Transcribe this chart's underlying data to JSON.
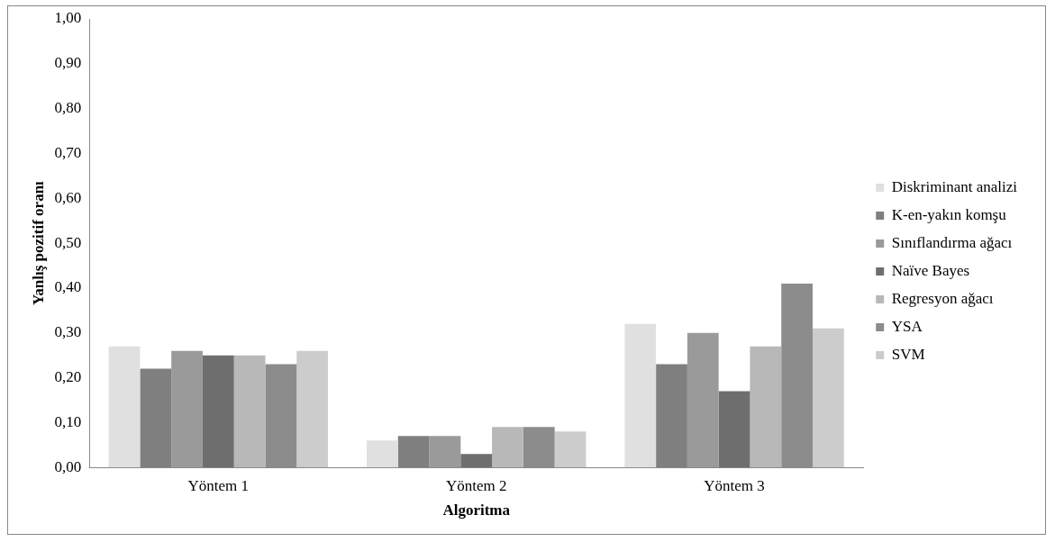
{
  "chart_data": {
    "type": "bar",
    "xlabel": "Algoritma",
    "ylabel": "Yanlış pozitif oranı",
    "categories": [
      "Yöntem 1",
      "Yöntem 2",
      "Yöntem 3"
    ],
    "series": [
      {
        "name": "Diskriminant analizi",
        "color": "#e0e0e0",
        "values": [
          0.27,
          0.06,
          0.32
        ]
      },
      {
        "name": "K-en-yakın komşu",
        "color": "#7f7f7f",
        "values": [
          0.22,
          0.07,
          0.23
        ]
      },
      {
        "name": "Sınıflandırma ağacı",
        "color": "#9a9a9a",
        "values": [
          0.26,
          0.07,
          0.3
        ]
      },
      {
        "name": "Naïve Bayes",
        "color": "#6e6e6e",
        "values": [
          0.25,
          0.03,
          0.17
        ]
      },
      {
        "name": "Regresyon ağacı",
        "color": "#b8b8b8",
        "values": [
          0.25,
          0.09,
          0.27
        ]
      },
      {
        "name": "YSA",
        "color": "#8c8c8c",
        "values": [
          0.23,
          0.09,
          0.41
        ]
      },
      {
        "name": "SVM",
        "color": "#cccccc",
        "values": [
          0.26,
          0.08,
          0.31
        ]
      }
    ],
    "ylim": [
      0,
      1
    ],
    "yticks": [
      {
        "value": 0,
        "label": "0,00"
      },
      {
        "value": 0.1,
        "label": "0,10"
      },
      {
        "value": 0.2,
        "label": "0,20"
      },
      {
        "value": 0.3,
        "label": "0,30"
      },
      {
        "value": 0.4,
        "label": "0,40"
      },
      {
        "value": 0.5,
        "label": "0,50"
      },
      {
        "value": 0.6,
        "label": "0,60"
      },
      {
        "value": 0.7,
        "label": "0,70"
      },
      {
        "value": 0.8,
        "label": "0,80"
      },
      {
        "value": 0.9,
        "label": "0,90"
      },
      {
        "value": 1,
        "label": "1,00"
      }
    ],
    "grid": false,
    "legend": "right"
  }
}
